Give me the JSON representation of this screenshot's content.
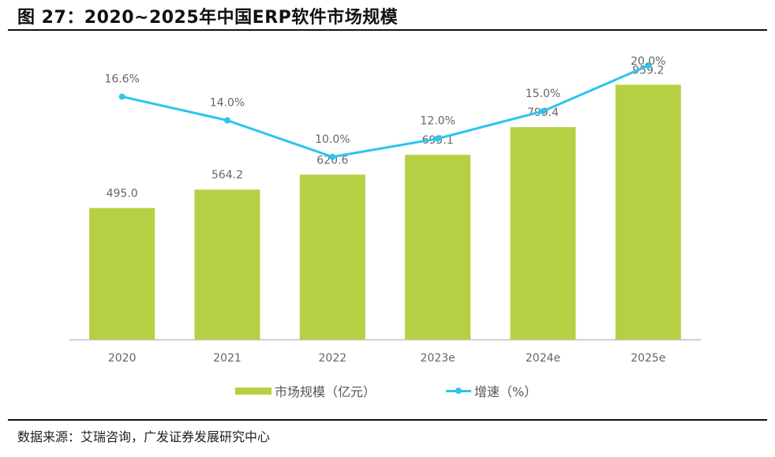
{
  "header": {
    "title": "图 27：2020~2025年中国ERP软件市场规模"
  },
  "footer": {
    "source": "数据来源：艾瑞咨询，广发证券发展研究中心"
  },
  "colors": {
    "bar": "#B5D143",
    "line": "#2DC4EE",
    "axis": "#BFBFBF",
    "label": "#666666"
  },
  "legend": {
    "bar_label": "市场规模（亿元）",
    "line_label": "增速（%）"
  },
  "chart_data": {
    "type": "bar",
    "title": "2020~2025年中国ERP软件市场规模",
    "xlabel": "",
    "ylabel": "",
    "categories": [
      "2020",
      "2021",
      "2022",
      "2023e",
      "2024e",
      "2025e"
    ],
    "series": [
      {
        "name": "市场规模（亿元）",
        "type": "bar",
        "axis": "left",
        "values": [
          495.0,
          564.2,
          620.6,
          695.1,
          799.4,
          959.2
        ],
        "labels": [
          "495.0",
          "564.2",
          "620.6",
          "695.1",
          "799.4",
          "959.2"
        ]
      },
      {
        "name": "增速（%）",
        "type": "line",
        "axis": "right",
        "values": [
          16.6,
          14.0,
          10.0,
          12.0,
          15.0,
          20.0
        ],
        "labels": [
          "16.6%",
          "14.0%",
          "10.0%",
          "12.0%",
          "15.0%",
          "20.0%"
        ]
      }
    ],
    "ylim_left": [
      0,
      1100
    ],
    "ylim_right": [
      -10,
      22
    ],
    "grid": false,
    "axes_visible": false,
    "legend_position": "bottom"
  }
}
